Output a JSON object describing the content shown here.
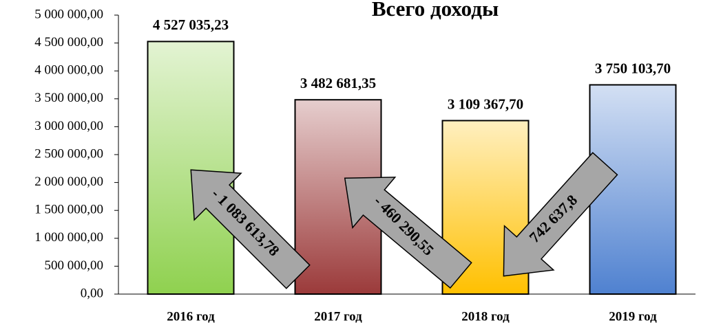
{
  "chart_data": {
    "type": "bar",
    "title": "Всего доходы",
    "categories": [
      "2016 год",
      "2017 год",
      "2018 год",
      "2019 год"
    ],
    "values": [
      4527035.23,
      3482681.35,
      3109367.7,
      3750103.7
    ],
    "value_labels": [
      "4 527 035,23",
      "3 482 681,35",
      "3 109 367,70",
      "3 750 103,70"
    ],
    "colors": [
      "#8fd14f",
      "#9b3a3a",
      "#ffc000",
      "#4f81d0"
    ],
    "ylim": [
      0,
      5000000
    ],
    "yticks": [
      {
        "value": 0,
        "label": "0,00"
      },
      {
        "value": 500000,
        "label": "500 000,00"
      },
      {
        "value": 1000000,
        "label": "1 000 000,00"
      },
      {
        "value": 1500000,
        "label": "1 500 000,00"
      },
      {
        "value": 2000000,
        "label": "2 000 000,00"
      },
      {
        "value": 2500000,
        "label": "2 500 000,00"
      },
      {
        "value": 3000000,
        "label": "3 000 000,00"
      },
      {
        "value": 3500000,
        "label": "3 500 000,00"
      },
      {
        "value": 4000000,
        "label": "4 000 000,00"
      },
      {
        "value": 4500000,
        "label": "4 500 000,00"
      },
      {
        "value": 5000000,
        "label": "5 000 000,00"
      }
    ],
    "annotations": [
      {
        "text": "- 1 083 613,78"
      },
      {
        "text": "- 460 290,55"
      },
      {
        "text": "742 637,8"
      }
    ]
  }
}
